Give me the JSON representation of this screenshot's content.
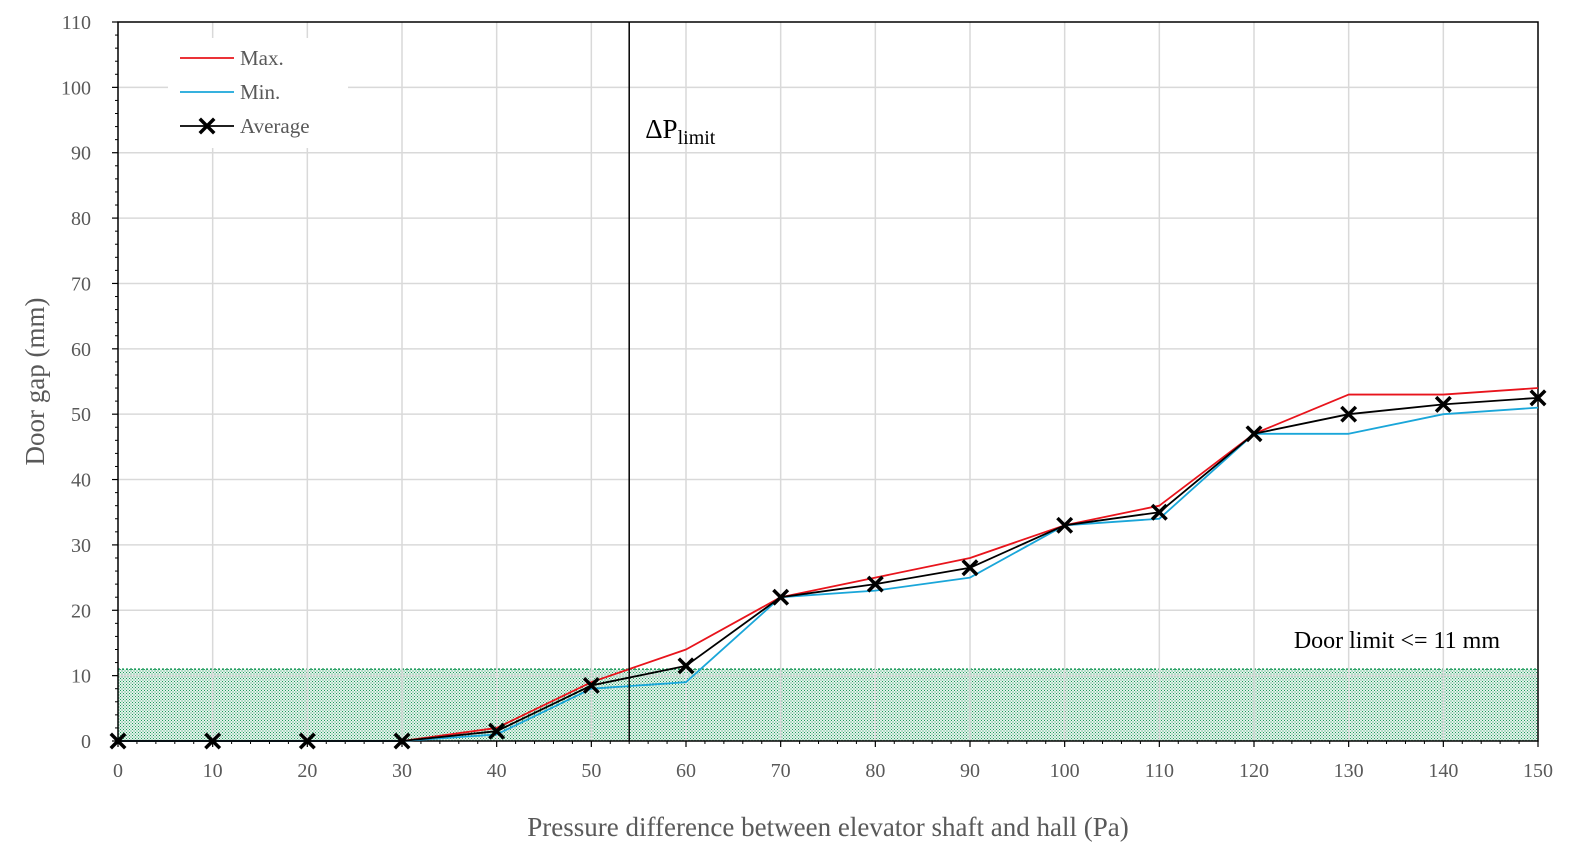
{
  "chart_data": {
    "type": "line",
    "title": "",
    "xlabel": "Pressure difference between elevator shaft and hall (Pa)",
    "ylabel": "Door gap (mm)",
    "xlim": [
      0,
      150
    ],
    "ylim": [
      0,
      110
    ],
    "xticks": [
      0,
      10,
      20,
      30,
      40,
      50,
      60,
      70,
      80,
      90,
      100,
      110,
      120,
      130,
      140,
      150
    ],
    "yticks": [
      0,
      10,
      20,
      30,
      40,
      50,
      60,
      70,
      80,
      90,
      100,
      110
    ],
    "grid": true,
    "legend_position": "top-left",
    "x": [
      0,
      10,
      20,
      30,
      40,
      50,
      60,
      70,
      80,
      90,
      100,
      110,
      120,
      130,
      140,
      150
    ],
    "series": [
      {
        "name": "Max.",
        "color": "#e8141c",
        "marker": "none",
        "values": [
          0,
          0,
          0,
          0,
          2,
          9,
          14,
          22,
          25,
          28,
          33,
          36,
          47,
          53,
          53,
          54
        ]
      },
      {
        "name": "Min.",
        "color": "#1aa6d9",
        "marker": "none",
        "values": [
          0,
          0,
          0,
          0,
          1,
          8,
          9,
          22,
          23,
          25,
          33,
          34,
          47,
          47,
          50,
          51
        ]
      },
      {
        "name": "Average",
        "color": "#000000",
        "marker": "x",
        "values": [
          0,
          0,
          0,
          0,
          1.5,
          8.5,
          11.5,
          22,
          24,
          26.5,
          33,
          35,
          47,
          50,
          51.5,
          52.5
        ]
      }
    ],
    "annotations": {
      "dp_limit": {
        "x": 54,
        "base": "ΔP",
        "subscript": "limit"
      },
      "door_limit": {
        "value": 11,
        "label": "Door limit <= 11 mm",
        "fill_color": "#1a9a5a"
      }
    }
  }
}
